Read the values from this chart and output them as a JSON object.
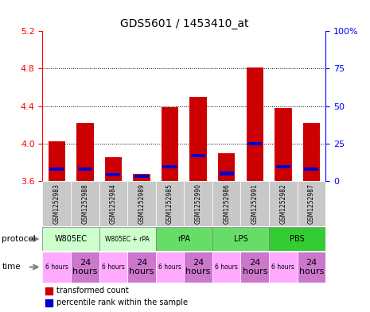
{
  "title": "GDS5601 / 1453410_at",
  "samples": [
    "GSM1252983",
    "GSM1252988",
    "GSM1252984",
    "GSM1252989",
    "GSM1252985",
    "GSM1252990",
    "GSM1252986",
    "GSM1252991",
    "GSM1252982",
    "GSM1252987"
  ],
  "transformed_count": [
    4.02,
    4.22,
    3.85,
    3.68,
    4.39,
    4.5,
    3.9,
    4.81,
    4.38,
    4.22
  ],
  "blue_marker_pos": [
    3.73,
    3.73,
    3.67,
    3.65,
    3.75,
    3.87,
    3.68,
    4.0,
    3.75,
    3.73
  ],
  "ylim": [
    3.6,
    5.2
  ],
  "yticks": [
    3.6,
    4.0,
    4.4,
    4.8,
    5.2
  ],
  "y2lim": [
    0,
    100
  ],
  "y2ticks": [
    0,
    25,
    50,
    75,
    100
  ],
  "y2ticklabels": [
    "0",
    "25",
    "50",
    "75",
    "100%"
  ],
  "bar_color": "#cc0000",
  "blue_color": "#0000cc",
  "plot_bg": "#ffffff",
  "sample_box_bg": "#c8c8c8",
  "proto_data": [
    {
      "label": "W805EC",
      "start": 0,
      "end": 2,
      "color": "#ccffcc"
    },
    {
      "label": "W805EC + rPA",
      "start": 2,
      "end": 4,
      "color": "#ccffcc"
    },
    {
      "label": "rPA",
      "start": 4,
      "end": 6,
      "color": "#66dd66"
    },
    {
      "label": "LPS",
      "start": 6,
      "end": 8,
      "color": "#66dd66"
    },
    {
      "label": "PBS",
      "start": 8,
      "end": 10,
      "color": "#33cc33"
    }
  ],
  "time_labels": [
    "6 hours",
    "24\nhours",
    "6 hours",
    "24\nhours",
    "6 hours",
    "24\nhours",
    "6 hours",
    "24\nhours",
    "6 hours",
    "24\nhours"
  ],
  "time_colors": [
    "#ffaaff",
    "#cc77cc",
    "#ffaaff",
    "#cc77cc",
    "#ffaaff",
    "#cc77cc",
    "#ffaaff",
    "#cc77cc",
    "#ffaaff",
    "#cc77cc"
  ],
  "legend_items": [
    {
      "label": "transformed count",
      "color": "#cc0000"
    },
    {
      "label": "percentile rank within the sample",
      "color": "#0000cc"
    }
  ]
}
